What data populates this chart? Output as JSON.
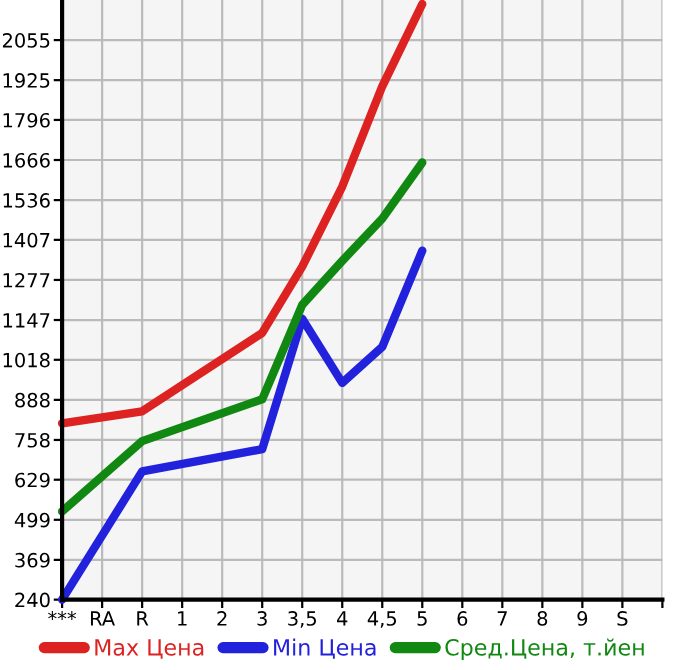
{
  "chart_data": {
    "type": "line",
    "categories": [
      "***",
      "RA",
      "R",
      "1",
      "2",
      "3",
      "3,5",
      "4",
      "4,5",
      "5",
      "6",
      "7",
      "8",
      "9",
      "S",
      null
    ],
    "series": [
      {
        "name": "Max Цена",
        "color": "#dd2222",
        "values": [
          812,
          null,
          851,
          null,
          null,
          1105,
          1320,
          1580,
          1905,
          2172,
          null,
          null,
          null,
          null,
          null,
          null
        ]
      },
      {
        "name": "Min Цена",
        "color": "#2222dd",
        "values": [
          240,
          null,
          656,
          null,
          null,
          728,
          1151,
          943,
          1060,
          1372,
          null,
          null,
          null,
          null,
          null,
          null
        ]
      },
      {
        "name": "Сред.Цена, т.йен",
        "color": "#118811",
        "values": [
          526,
          null,
          754,
          null,
          null,
          890,
          1196,
          1339,
          1476,
          1658,
          null,
          null,
          null,
          null,
          null,
          null
        ]
      }
    ],
    "ylim": [
      240,
      2185
    ],
    "yticks": [
      240,
      369,
      499,
      629,
      758,
      888,
      1018,
      1147,
      1277,
      1407,
      1536,
      1666,
      1796,
      1925,
      2055
    ],
    "grid": true,
    "legend": "bottom",
    "marker": "none",
    "line_style": "solid"
  }
}
